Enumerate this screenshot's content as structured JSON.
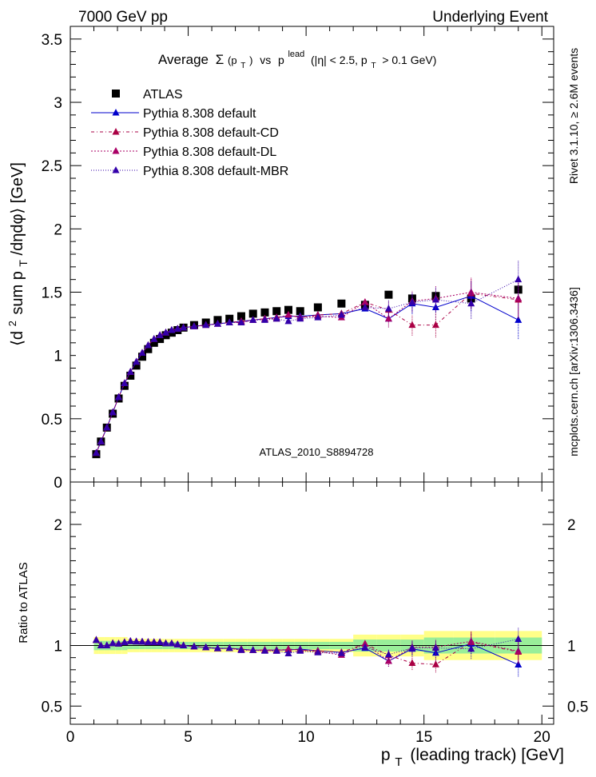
{
  "header": {
    "left": "7000 GeV pp",
    "right": "Underlying Event"
  },
  "side": {
    "rivet": "Rivet 3.1.10, ≥ 2.6M events",
    "mcplots": "mcplots.cern.ch [arXiv:1306.3436]"
  },
  "watermark": "ATLAS_2010_S8894728",
  "chart_data": {
    "type": "scatter",
    "title_parts": {
      "average": "Average",
      "sigma": "Σ",
      "pt_paren": "(p",
      "T": "T",
      "close": ")",
      "vs": "vs",
      "p": "p",
      "lead": "lead",
      "cuts": "(|η| < 2.5, p",
      "cuts_tail": "> 0.1 GeV)"
    },
    "ylabel_parts": {
      "open": "⟨d",
      "sup2": "2",
      "sum": "sum p",
      "T": "T",
      "tail": "/dηdφ⟩ [GeV]"
    },
    "ratio_ylabel": "Ratio to ATLAS",
    "xlabel_parts": {
      "p": "p",
      "T": "T",
      "tail": "(leading track) [GeV]"
    },
    "xlim": [
      0,
      20.5
    ],
    "ylim": [
      0,
      3.6
    ],
    "ratio_ylim": [
      0.35,
      2.35
    ],
    "x_ticks": [
      "0",
      "5",
      "10",
      "15",
      "20"
    ],
    "y_ticks": [
      "0",
      "0.5",
      "1",
      "1.5",
      "2",
      "2.5",
      "3",
      "3.5"
    ],
    "ratio_y_ticks": [
      "0.5",
      "1",
      "2"
    ],
    "x": [
      1.1,
      1.3,
      1.55,
      1.8,
      2.05,
      2.3,
      2.55,
      2.8,
      3.05,
      3.3,
      3.55,
      3.8,
      4.05,
      4.3,
      4.55,
      4.8,
      5.25,
      5.75,
      6.25,
      6.75,
      7.25,
      7.75,
      8.25,
      8.75,
      9.25,
      9.75,
      10.5,
      11.5,
      12.5,
      13.5,
      14.5,
      15.5,
      17.0,
      19.0
    ],
    "series": [
      {
        "name": "ATLAS",
        "color": "#000000",
        "values": [
          0.22,
          0.32,
          0.43,
          0.54,
          0.66,
          0.76,
          0.84,
          0.92,
          0.99,
          1.05,
          1.1,
          1.13,
          1.16,
          1.18,
          1.2,
          1.22,
          1.24,
          1.26,
          1.28,
          1.29,
          1.31,
          1.33,
          1.34,
          1.35,
          1.36,
          1.35,
          1.38,
          1.41,
          1.4,
          1.48,
          1.45,
          1.47,
          1.45,
          1.52
        ]
      },
      {
        "name": "Pythia 8.308 default",
        "color": "#0000cc",
        "values": [
          0.23,
          0.32,
          0.43,
          0.55,
          0.67,
          0.78,
          0.87,
          0.95,
          1.02,
          1.08,
          1.13,
          1.16,
          1.18,
          1.2,
          1.21,
          1.22,
          1.23,
          1.24,
          1.25,
          1.26,
          1.27,
          1.28,
          1.29,
          1.3,
          1.31,
          1.31,
          1.32,
          1.33,
          1.37,
          1.29,
          1.41,
          1.38,
          1.47,
          1.28
        ]
      },
      {
        "name": "Pythia 8.308 default-CD",
        "color": "#aa0044",
        "values": [
          0.23,
          0.32,
          0.43,
          0.55,
          0.67,
          0.78,
          0.87,
          0.95,
          1.02,
          1.08,
          1.13,
          1.16,
          1.18,
          1.2,
          1.21,
          1.22,
          1.23,
          1.24,
          1.25,
          1.26,
          1.27,
          1.28,
          1.29,
          1.3,
          1.32,
          1.3,
          1.32,
          1.33,
          1.42,
          1.36,
          1.24,
          1.24,
          1.49,
          1.44
        ]
      },
      {
        "name": "Pythia 8.308 default-DL",
        "color": "#aa0066",
        "values": [
          0.23,
          0.32,
          0.43,
          0.55,
          0.67,
          0.78,
          0.87,
          0.95,
          1.02,
          1.08,
          1.13,
          1.16,
          1.18,
          1.2,
          1.21,
          1.22,
          1.23,
          1.24,
          1.25,
          1.26,
          1.26,
          1.28,
          1.29,
          1.29,
          1.32,
          1.3,
          1.31,
          1.3,
          1.42,
          1.29,
          1.43,
          1.45,
          1.5,
          1.45
        ]
      },
      {
        "name": "Pythia 8.308 default-MBR",
        "color": "#3300aa",
        "values": [
          0.23,
          0.32,
          0.43,
          0.55,
          0.67,
          0.78,
          0.87,
          0.95,
          1.02,
          1.08,
          1.13,
          1.16,
          1.18,
          1.2,
          1.21,
          1.22,
          1.23,
          1.24,
          1.25,
          1.26,
          1.26,
          1.28,
          1.28,
          1.29,
          1.27,
          1.29,
          1.3,
          1.32,
          1.38,
          1.37,
          1.42,
          1.44,
          1.41,
          1.6
        ]
      }
    ],
    "legend_position": "top-left",
    "grid": false
  }
}
